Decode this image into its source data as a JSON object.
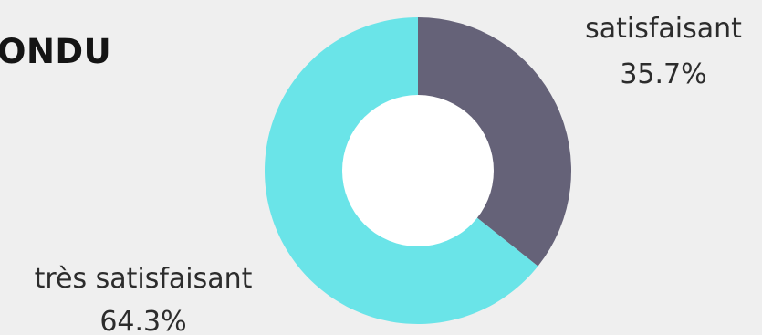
{
  "heading": "ONDU",
  "colors": {
    "background": "#efefef",
    "hole": "#ffffff"
  },
  "chart_data": {
    "type": "pie",
    "style": "donut",
    "title": "",
    "slices": [
      {
        "label": "satisfaisant",
        "value": 35.7,
        "value_label": "35.7%",
        "color": "#656278"
      },
      {
        "label": "très satisfaisant",
        "value": 64.3,
        "value_label": "64.3%",
        "color": "#6ae4e8"
      }
    ],
    "start_angle": "12 o'clock",
    "direction": "clockwise"
  }
}
